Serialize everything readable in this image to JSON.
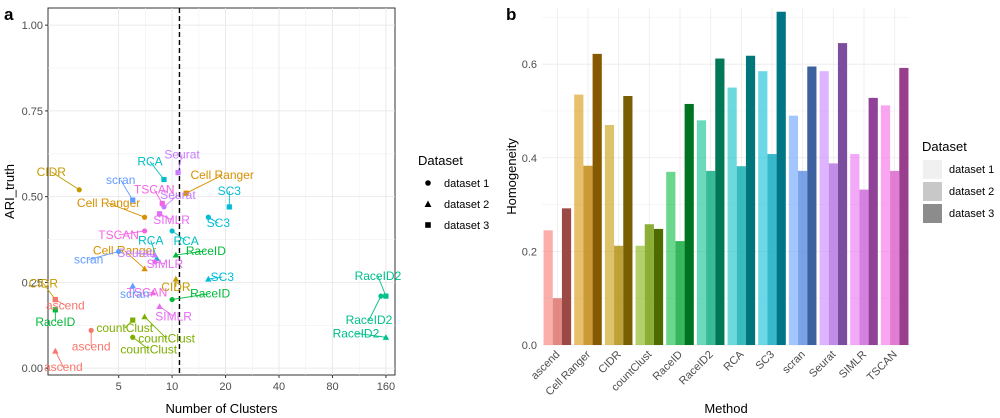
{
  "panel_a_label": "a",
  "panel_b_label": "b",
  "chart_data": [
    {
      "type": "scatter",
      "panel": "a",
      "xlabel": "Number of Clusters",
      "ylabel": "ARI_truth",
      "x_scale": "log",
      "x_ticks": [
        5,
        10,
        20,
        40,
        80,
        160
      ],
      "x_tick_labels": [
        "5",
        "10",
        "20",
        "40",
        "80",
        "160"
      ],
      "xlim": [
        2,
        180
      ],
      "ylim": [
        -0.02,
        1.05
      ],
      "y_ticks": [
        0,
        0.25,
        0.5,
        0.75,
        1.0
      ],
      "y_tick_labels": [
        "0.00",
        "0.25",
        "0.50",
        "0.75",
        "1.00"
      ],
      "vline_x": 11,
      "legend": {
        "title": "Dataset",
        "entries": [
          {
            "shape": "circle",
            "label": "dataset 1"
          },
          {
            "shape": "triangle",
            "label": "dataset 2"
          },
          {
            "shape": "square",
            "label": "dataset 3"
          }
        ]
      },
      "points": [
        {
          "method": "CIDR",
          "dataset": 1,
          "x": 3.0,
          "y": 0.52,
          "color": "#C49A00",
          "label": "CIDR"
        },
        {
          "method": "CIDR",
          "dataset": 2,
          "x": 10.5,
          "y": 0.26,
          "color": "#C49A00",
          "label": "CIDR"
        },
        {
          "method": "CIDR",
          "dataset": 3,
          "x": 2.2,
          "y": 0.2,
          "color": "#C49A00",
          "label": "CIDR"
        },
        {
          "method": "Cell Ranger",
          "dataset": 1,
          "x": 7.0,
          "y": 0.44,
          "color": "#D89000",
          "label": "Cell Ranger"
        },
        {
          "method": "Cell Ranger",
          "dataset": 2,
          "x": 7.0,
          "y": 0.29,
          "color": "#D89000",
          "label": "Cell Ranger"
        },
        {
          "method": "Cell Ranger",
          "dataset": 3,
          "x": 12.0,
          "y": 0.51,
          "color": "#D89000",
          "label": "Cell Ranger"
        },
        {
          "method": "RCA",
          "dataset": 1,
          "x": 10.0,
          "y": 0.4,
          "color": "#00BFC4",
          "label": "RCA"
        },
        {
          "method": "RCA",
          "dataset": 2,
          "x": 8.2,
          "y": 0.32,
          "color": "#00BFC4",
          "label": "RCA"
        },
        {
          "method": "RCA",
          "dataset": 3,
          "x": 9.0,
          "y": 0.55,
          "color": "#00BFC4",
          "label": "RCA"
        },
        {
          "method": "SC3",
          "dataset": 1,
          "x": 16.0,
          "y": 0.44,
          "color": "#00BCD8",
          "label": "SC3"
        },
        {
          "method": "SC3",
          "dataset": 2,
          "x": 16.0,
          "y": 0.26,
          "color": "#00BCD8",
          "label": "SC3"
        },
        {
          "method": "SC3",
          "dataset": 3,
          "x": 21.0,
          "y": 0.47,
          "color": "#00BCD8",
          "label": "SC3"
        },
        {
          "method": "Seurat",
          "dataset": 1,
          "x": 9.0,
          "y": 0.47,
          "color": "#C77CFF",
          "label": "Seurat"
        },
        {
          "method": "Seurat",
          "dataset": 2,
          "x": 8.0,
          "y": 0.33,
          "color": "#C77CFF",
          "label": "Seurat"
        },
        {
          "method": "Seurat",
          "dataset": 3,
          "x": 10.8,
          "y": 0.57,
          "color": "#C77CFF",
          "label": "Seurat"
        },
        {
          "method": "SIMLR",
          "dataset": 1,
          "x": 8.0,
          "y": 0.31,
          "color": "#E76BF3",
          "label": "SIMLR"
        },
        {
          "method": "SIMLR",
          "dataset": 2,
          "x": 8.5,
          "y": 0.18,
          "color": "#E76BF3",
          "label": "SIMLR"
        },
        {
          "method": "SIMLR",
          "dataset": 3,
          "x": 8.5,
          "y": 0.45,
          "color": "#E76BF3",
          "label": "SIMLR"
        },
        {
          "method": "TSCAN",
          "dataset": 1,
          "x": 7.0,
          "y": 0.4,
          "color": "#F564E3",
          "label": "TSCAN"
        },
        {
          "method": "TSCAN",
          "dataset": 2,
          "x": 7.8,
          "y": 0.22,
          "color": "#F564E3",
          "label": "TSCAN"
        },
        {
          "method": "TSCAN",
          "dataset": 3,
          "x": 8.8,
          "y": 0.48,
          "color": "#F564E3",
          "label": "TSCAN"
        },
        {
          "method": "scran",
          "dataset": 1,
          "x": 5.0,
          "y": 0.34,
          "color": "#619CFF",
          "label": "scran"
        },
        {
          "method": "scran",
          "dataset": 2,
          "x": 6.0,
          "y": 0.24,
          "color": "#619CFF",
          "label": "scran"
        },
        {
          "method": "scran",
          "dataset": 3,
          "x": 6.0,
          "y": 0.49,
          "color": "#619CFF",
          "label": "scran"
        },
        {
          "method": "RaceID",
          "dataset": 1,
          "x": 10.0,
          "y": 0.2,
          "color": "#00BA38",
          "label": "RaceID"
        },
        {
          "method": "RaceID",
          "dataset": 2,
          "x": 10.5,
          "y": 0.33,
          "color": "#00BA38",
          "label": "RaceID"
        },
        {
          "method": "RaceID",
          "dataset": 3,
          "x": 2.2,
          "y": 0.17,
          "color": "#00BA38",
          "label": "RaceID"
        },
        {
          "method": "RaceID2",
          "dataset": 1,
          "x": 150.0,
          "y": 0.21,
          "color": "#00C08B",
          "label": "RaceID2"
        },
        {
          "method": "RaceID2",
          "dataset": 2,
          "x": 160.0,
          "y": 0.09,
          "color": "#00C08B",
          "label": "RaceID2"
        },
        {
          "method": "RaceID2",
          "dataset": 3,
          "x": 160.0,
          "y": 0.21,
          "color": "#00C08B",
          "label": "RaceID2"
        },
        {
          "method": "ascend",
          "dataset": 1,
          "x": 3.5,
          "y": 0.11,
          "color": "#F8766D",
          "label": "ascend"
        },
        {
          "method": "ascend",
          "dataset": 2,
          "x": 2.2,
          "y": 0.05,
          "color": "#F8766D",
          "label": "ascend"
        },
        {
          "method": "ascend",
          "dataset": 3,
          "x": 2.2,
          "y": 0.2,
          "color": "#F8766D",
          "label": "ascend"
        },
        {
          "method": "countClust",
          "dataset": 1,
          "x": 6.0,
          "y": 0.09,
          "color": "#7CAE00",
          "label": "countClust"
        },
        {
          "method": "countClust",
          "dataset": 2,
          "x": 7.0,
          "y": 0.15,
          "color": "#7CAE00",
          "label": "countClust"
        },
        {
          "method": "countClust",
          "dataset": 3,
          "x": 6.0,
          "y": 0.14,
          "color": "#7CAE00",
          "label": "countClust"
        }
      ]
    },
    {
      "type": "bar",
      "panel": "b",
      "xlabel": "Method",
      "ylabel": "Homogeneity",
      "ylim": [
        0,
        0.72
      ],
      "y_ticks": [
        0,
        0.2,
        0.4,
        0.6
      ],
      "y_tick_labels": [
        "0.0",
        "0.2",
        "0.4",
        "0.6"
      ],
      "categories": [
        "ascend",
        "Cell Ranger",
        "CIDR",
        "countClust",
        "RaceID",
        "RaceID2",
        "RCA",
        "SC3",
        "scran",
        "Seurat",
        "SIMLR",
        "TSCAN"
      ],
      "colors": [
        "#F8766D",
        "#D89000",
        "#C49A00",
        "#7CAE00",
        "#00BA38",
        "#00C08B",
        "#00BFC4",
        "#00BCD8",
        "#619CFF",
        "#C77CFF",
        "#E76BF3",
        "#F564E3"
      ],
      "series": [
        {
          "name": "dataset 1",
          "values": [
            0.245,
            0.535,
            0.47,
            0.212,
            0.37,
            0.48,
            0.55,
            0.585,
            0.49,
            0.585,
            0.408,
            0.512
          ]
        },
        {
          "name": "dataset 2",
          "values": [
            0.1,
            0.383,
            0.212,
            0.258,
            0.222,
            0.372,
            0.382,
            0.408,
            0.372,
            0.388,
            0.332,
            0.372
          ]
        },
        {
          "name": "dataset 3",
          "values": [
            0.292,
            0.622,
            0.532,
            0.248,
            0.515,
            0.612,
            0.618,
            0.712,
            0.595,
            0.645,
            0.528,
            0.592
          ]
        }
      ],
      "legend": {
        "title": "Dataset",
        "entries": [
          "dataset 1",
          "dataset 2",
          "dataset 3"
        ]
      }
    }
  ]
}
